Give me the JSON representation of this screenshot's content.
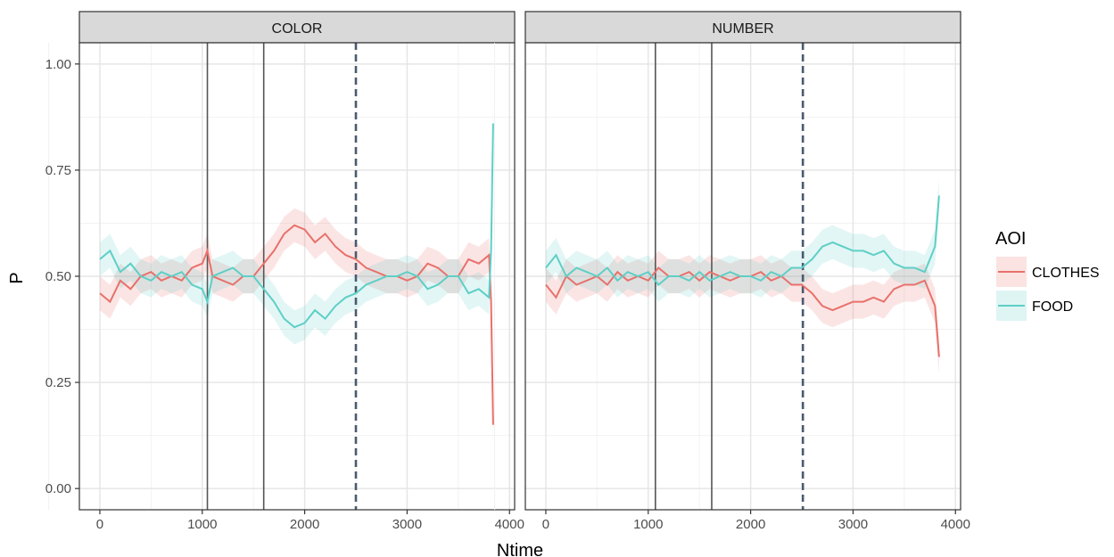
{
  "chart_data": {
    "type": "line",
    "xlabel": "Ntime",
    "ylabel": "P",
    "xlim": [
      -200,
      4050
    ],
    "ylim": [
      -0.05,
      1.05
    ],
    "x_ticks": [
      0,
      1000,
      2000,
      3000,
      4000
    ],
    "y_ticks": [
      0.0,
      0.25,
      0.5,
      0.75,
      1.0
    ],
    "y_tick_labels": [
      "0.00",
      "0.25",
      "0.50",
      "0.75",
      "1.00"
    ],
    "grid": true,
    "legend": {
      "title": "AOI",
      "placement": "right",
      "entries": [
        "CLOTHES",
        "FOOD"
      ]
    },
    "colors": {
      "CLOTHES": "#E8716B",
      "FOOD": "#5ECFC6"
    },
    "ribbon_halfwidth": 0.04,
    "panels": [
      {
        "strip": "COLOR",
        "vlines_solid": [
          1050,
          1600
        ],
        "vline_dashed": 2500,
        "series": [
          {
            "name": "CLOTHES",
            "x": [
              0,
              100,
              200,
              300,
              400,
              500,
              600,
              700,
              800,
              900,
              1000,
              1050,
              1100,
              1200,
              1300,
              1400,
              1500,
              1600,
              1700,
              1800,
              1900,
              2000,
              2100,
              2200,
              2300,
              2400,
              2500,
              2600,
              2700,
              2800,
              2900,
              3000,
              3100,
              3200,
              3300,
              3400,
              3500,
              3600,
              3700,
              3800,
              3820,
              3840
            ],
            "y": [
              0.46,
              0.44,
              0.49,
              0.47,
              0.5,
              0.51,
              0.49,
              0.5,
              0.49,
              0.52,
              0.53,
              0.56,
              0.5,
              0.49,
              0.48,
              0.5,
              0.5,
              0.53,
              0.56,
              0.6,
              0.62,
              0.61,
              0.58,
              0.6,
              0.57,
              0.55,
              0.54,
              0.52,
              0.51,
              0.5,
              0.5,
              0.49,
              0.5,
              0.53,
              0.52,
              0.5,
              0.5,
              0.54,
              0.53,
              0.55,
              0.44,
              0.15
            ]
          },
          {
            "name": "FOOD",
            "x": [
              0,
              100,
              200,
              300,
              400,
              500,
              600,
              700,
              800,
              900,
              1000,
              1050,
              1100,
              1200,
              1300,
              1400,
              1500,
              1600,
              1700,
              1800,
              1900,
              2000,
              2100,
              2200,
              2300,
              2400,
              2500,
              2600,
              2700,
              2800,
              2900,
              3000,
              3100,
              3200,
              3300,
              3400,
              3500,
              3600,
              3700,
              3800,
              3820,
              3840
            ],
            "y": [
              0.54,
              0.56,
              0.51,
              0.53,
              0.5,
              0.49,
              0.51,
              0.5,
              0.51,
              0.48,
              0.47,
              0.44,
              0.5,
              0.51,
              0.52,
              0.5,
              0.5,
              0.47,
              0.44,
              0.4,
              0.38,
              0.39,
              0.42,
              0.4,
              0.43,
              0.45,
              0.46,
              0.48,
              0.49,
              0.5,
              0.5,
              0.51,
              0.5,
              0.47,
              0.48,
              0.5,
              0.5,
              0.46,
              0.47,
              0.45,
              0.56,
              0.86
            ]
          }
        ]
      },
      {
        "strip": "NUMBER",
        "vlines_solid": [
          1070,
          1620
        ],
        "vline_dashed": 2510,
        "series": [
          {
            "name": "CLOTHES",
            "x": [
              0,
              100,
              200,
              300,
              400,
              500,
              600,
              700,
              800,
              900,
              1000,
              1100,
              1200,
              1300,
              1400,
              1500,
              1600,
              1700,
              1800,
              1900,
              2000,
              2100,
              2200,
              2300,
              2400,
              2500,
              2600,
              2700,
              2800,
              2900,
              3000,
              3100,
              3200,
              3300,
              3400,
              3500,
              3600,
              3700,
              3750,
              3800,
              3840
            ],
            "y": [
              0.48,
              0.45,
              0.5,
              0.48,
              0.49,
              0.5,
              0.48,
              0.51,
              0.49,
              0.5,
              0.49,
              0.52,
              0.5,
              0.5,
              0.51,
              0.49,
              0.51,
              0.5,
              0.49,
              0.5,
              0.5,
              0.51,
              0.49,
              0.5,
              0.48,
              0.48,
              0.46,
              0.43,
              0.42,
              0.43,
              0.44,
              0.44,
              0.45,
              0.44,
              0.47,
              0.48,
              0.48,
              0.49,
              0.46,
              0.43,
              0.31
            ]
          },
          {
            "name": "FOOD",
            "x": [
              0,
              100,
              200,
              300,
              400,
              500,
              600,
              700,
              800,
              900,
              1000,
              1100,
              1200,
              1300,
              1400,
              1500,
              1600,
              1700,
              1800,
              1900,
              2000,
              2100,
              2200,
              2300,
              2400,
              2500,
              2600,
              2700,
              2800,
              2900,
              3000,
              3100,
              3200,
              3300,
              3400,
              3500,
              3600,
              3700,
              3750,
              3800,
              3840
            ],
            "y": [
              0.52,
              0.55,
              0.5,
              0.52,
              0.51,
              0.5,
              0.52,
              0.49,
              0.51,
              0.5,
              0.51,
              0.48,
              0.5,
              0.5,
              0.49,
              0.51,
              0.49,
              0.5,
              0.51,
              0.5,
              0.5,
              0.49,
              0.51,
              0.5,
              0.52,
              0.52,
              0.54,
              0.57,
              0.58,
              0.57,
              0.56,
              0.56,
              0.55,
              0.56,
              0.53,
              0.52,
              0.52,
              0.51,
              0.54,
              0.57,
              0.69
            ]
          }
        ]
      }
    ]
  }
}
